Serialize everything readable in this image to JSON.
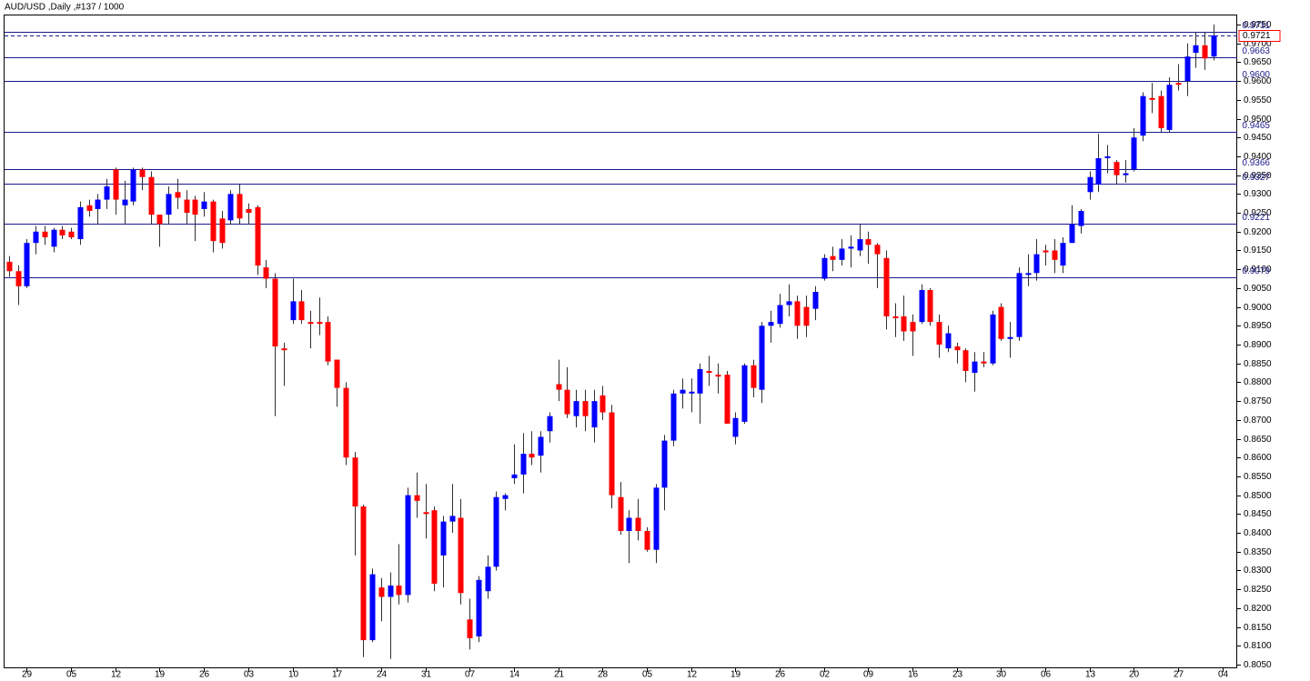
{
  "chart_data": {
    "type": "candlestick",
    "title": "AUD/USD ,Daily ,#137 / 1000",
    "categories": [
      null,
      null,
      "29",
      null,
      null,
      null,
      null,
      "05",
      null,
      null,
      null,
      null,
      "12",
      null,
      null,
      null,
      null,
      "19",
      null,
      null,
      null,
      null,
      "26",
      null,
      null,
      null,
      null,
      "03",
      null,
      null,
      null,
      null,
      "10",
      null,
      null,
      null,
      null,
      "17",
      null,
      null,
      null,
      null,
      "24",
      null,
      null,
      null,
      null,
      "31",
      null,
      null,
      null,
      null,
      "07",
      null,
      null,
      null,
      null,
      "14",
      null,
      null,
      null,
      null,
      "21",
      null,
      null,
      null,
      null,
      "28",
      null,
      null,
      null,
      null,
      "05",
      null,
      null,
      null,
      null,
      "12",
      null,
      null,
      null,
      null,
      "19",
      null,
      null,
      null,
      null,
      "26",
      null,
      null,
      null,
      null,
      "02",
      null,
      null,
      null,
      null,
      "09",
      null,
      null,
      null,
      null,
      "16",
      null,
      null,
      null,
      null,
      "23",
      null,
      null,
      null,
      null,
      "30",
      null,
      null,
      null,
      null,
      "06",
      null,
      null,
      null,
      null,
      "13",
      null,
      null,
      null,
      null,
      "20",
      null,
      null,
      null,
      null,
      "27",
      null,
      null,
      null,
      null,
      "04"
    ],
    "open": [
      0.912,
      0.9095,
      0.9055,
      0.917,
      0.92,
      0.916,
      0.9205,
      0.92,
      0.918,
      0.927,
      0.926,
      0.9285,
      0.9365,
      0.927,
      0.928,
      0.9365,
      0.9345,
      0.9245,
      0.9245,
      0.9305,
      0.9285,
      0.9285,
      0.926,
      0.928,
      0.9235,
      0.923,
      0.93,
      0.926,
      0.9265,
      0.9105,
      0.9075,
      0.889,
      0.8965,
      0.9015,
      0.896,
      0.896,
      0.896,
      0.886,
      0.8785,
      0.86,
      0.847,
      0.8115,
      0.8255,
      0.823,
      0.826,
      0.8235,
      0.85,
      0.8455,
      0.846,
      0.834,
      0.843,
      0.844,
      0.817,
      0.8125,
      0.8245,
      0.831,
      0.849,
      0.8545,
      0.8555,
      0.861,
      0.8605,
      0.867,
      0.8795,
      0.878,
      0.871,
      0.875,
      0.868,
      0.8765,
      0.872,
      0.8495,
      0.8405,
      0.844,
      0.8405,
      0.8355,
      0.852,
      0.8645,
      0.877,
      0.877,
      0.877,
      0.883,
      0.882,
      0.882,
      0.8655,
      0.8695,
      0.8845,
      0.878,
      0.895,
      0.8955,
      0.9005,
      0.9015,
      0.9,
      0.8995,
      0.9075,
      0.9135,
      0.9125,
      0.9155,
      0.915,
      0.918,
      0.9165,
      0.913,
      0.8975,
      0.8975,
      0.896,
      0.896,
      0.9045,
      0.896,
      0.889,
      0.8895,
      0.8885,
      0.8825,
      0.8855,
      0.885,
      0.9,
      0.8915,
      0.892,
      0.9085,
      0.909,
      0.915,
      0.915,
      0.911,
      0.917,
      0.9215,
      0.9305,
      0.9325,
      0.9395,
      0.9385,
      0.935,
      0.9365,
      0.9455,
      0.9555,
      0.956,
      0.947,
      0.9595,
      0.96,
      0.9675,
      0.9695,
      0.9665,
      null
    ],
    "high": [
      0.9135,
      0.911,
      0.918,
      0.9215,
      0.9215,
      0.921,
      0.9215,
      0.921,
      0.928,
      0.9285,
      0.93,
      0.934,
      0.937,
      0.9335,
      0.937,
      0.937,
      0.936,
      0.9245,
      0.932,
      0.934,
      0.931,
      0.9295,
      0.9305,
      0.9285,
      0.9255,
      0.931,
      0.9325,
      0.9275,
      0.927,
      0.9125,
      0.909,
      0.8905,
      0.9075,
      0.9045,
      0.899,
      0.9025,
      0.8975,
      0.886,
      0.88,
      0.8615,
      0.8475,
      0.8305,
      0.828,
      0.8295,
      0.837,
      0.852,
      0.856,
      0.853,
      0.847,
      0.8445,
      0.853,
      0.849,
      0.8225,
      0.8285,
      0.834,
      0.851,
      0.8505,
      0.8635,
      0.8665,
      0.867,
      0.867,
      0.872,
      0.886,
      0.884,
      0.878,
      0.878,
      0.878,
      0.879,
      0.874,
      0.8535,
      0.846,
      0.849,
      0.8415,
      0.853,
      0.866,
      0.878,
      0.881,
      0.881,
      0.885,
      0.887,
      0.885,
      0.883,
      0.872,
      0.885,
      0.886,
      0.896,
      0.899,
      0.9035,
      0.906,
      0.903,
      0.903,
      0.9055,
      0.914,
      0.916,
      0.918,
      0.919,
      0.922,
      0.92,
      0.917,
      0.915,
      0.901,
      0.903,
      0.898,
      0.906,
      0.905,
      0.898,
      0.895,
      0.8905,
      0.889,
      0.888,
      0.888,
      0.899,
      0.901,
      0.896,
      0.9105,
      0.914,
      0.918,
      0.9165,
      0.918,
      0.9185,
      0.927,
      0.926,
      0.936,
      0.946,
      0.943,
      0.939,
      0.939,
      0.9475,
      0.957,
      0.9595,
      0.9575,
      0.961,
      0.9645,
      0.97,
      0.973,
      0.973,
      0.975,
      null
    ],
    "low": [
      0.908,
      0.9005,
      0.905,
      0.914,
      0.9165,
      0.9145,
      0.918,
      0.918,
      0.9165,
      0.924,
      0.922,
      0.926,
      0.9245,
      0.922,
      0.927,
      0.931,
      0.922,
      0.916,
      0.922,
      0.926,
      0.922,
      0.9175,
      0.924,
      0.9145,
      0.9155,
      0.922,
      0.922,
      0.922,
      0.9085,
      0.905,
      0.871,
      0.879,
      0.8955,
      0.8955,
      0.889,
      0.8925,
      0.8845,
      0.8735,
      0.858,
      0.834,
      0.807,
      0.811,
      0.8165,
      0.8065,
      0.821,
      0.8215,
      0.844,
      0.8385,
      0.8245,
      0.8255,
      0.84,
      0.821,
      0.809,
      0.811,
      0.8225,
      0.83,
      0.846,
      0.853,
      0.8505,
      0.858,
      0.856,
      0.864,
      0.875,
      0.8705,
      0.868,
      0.867,
      0.864,
      0.87,
      0.8465,
      0.8395,
      0.832,
      0.838,
      0.835,
      0.832,
      0.846,
      0.863,
      0.873,
      0.872,
      0.869,
      0.879,
      0.877,
      0.869,
      0.8635,
      0.869,
      0.876,
      0.8745,
      0.8905,
      0.8945,
      0.8975,
      0.8915,
      0.892,
      0.8965,
      0.907,
      0.9095,
      0.911,
      0.9105,
      0.9135,
      0.9115,
      0.905,
      0.894,
      0.892,
      0.891,
      0.887,
      0.8955,
      0.895,
      0.8865,
      0.888,
      0.885,
      0.88,
      0.8775,
      0.884,
      0.8845,
      0.891,
      0.8865,
      0.891,
      0.9055,
      0.907,
      0.911,
      0.909,
      0.909,
      0.917,
      0.9195,
      0.9285,
      0.9305,
      0.9355,
      0.9325,
      0.933,
      0.936,
      0.944,
      0.9515,
      0.9465,
      0.9465,
      0.9575,
      0.956,
      0.9635,
      0.963,
      0.9655,
      null
    ],
    "close": [
      0.9095,
      0.9055,
      0.917,
      0.92,
      0.9185,
      0.9205,
      0.919,
      0.9185,
      0.9265,
      0.9255,
      0.9285,
      0.932,
      0.9285,
      0.9285,
      0.9365,
      0.9345,
      0.9245,
      0.922,
      0.93,
      0.929,
      0.925,
      0.9245,
      0.928,
      0.9175,
      0.917,
      0.93,
      0.9235,
      0.925,
      0.911,
      0.9075,
      0.8895,
      0.8885,
      0.9015,
      0.8965,
      0.8955,
      0.8955,
      0.8855,
      0.8785,
      0.86,
      0.847,
      0.8115,
      0.829,
      0.823,
      0.826,
      0.8235,
      0.85,
      0.8485,
      0.845,
      0.8265,
      0.843,
      0.8445,
      0.824,
      0.812,
      0.8275,
      0.831,
      0.8495,
      0.85,
      0.8555,
      0.861,
      0.86,
      0.8655,
      0.871,
      0.878,
      0.8715,
      0.875,
      0.871,
      0.875,
      0.872,
      0.85,
      0.8405,
      0.844,
      0.8405,
      0.8355,
      0.852,
      0.8645,
      0.877,
      0.878,
      0.8775,
      0.8835,
      0.8825,
      0.8815,
      0.869,
      0.8705,
      0.8845,
      0.8785,
      0.895,
      0.896,
      0.9005,
      0.9015,
      0.895,
      0.895,
      0.904,
      0.913,
      0.9125,
      0.9155,
      0.916,
      0.918,
      0.9165,
      0.914,
      0.8975,
      0.897,
      0.8935,
      0.8935,
      0.9045,
      0.896,
      0.89,
      0.893,
      0.8885,
      0.883,
      0.8855,
      0.885,
      0.898,
      0.8915,
      0.892,
      0.909,
      0.909,
      0.914,
      0.9145,
      0.9125,
      0.917,
      0.922,
      0.9255,
      0.9345,
      0.9395,
      0.94,
      0.935,
      0.9355,
      0.945,
      0.956,
      0.955,
      0.9475,
      0.959,
      0.959,
      0.9665,
      0.9695,
      0.966,
      0.9721,
      null
    ],
    "up_color": "#0000ff",
    "down_color": "#ff0000",
    "wick_color": "#303030",
    "levels": [
      0.9731,
      0.9663,
      {
        "value": 0.96,
        "label": "0.9600"
      },
      0.9465,
      0.9366,
      0.9327,
      0.9221,
      0.9079
    ],
    "level_color": "#1a1a8c",
    "current_price": 0.9721,
    "ylim": [
      0.805,
      0.975
    ],
    "yticks": [
      {
        "value": 0.975,
        "label": "0.9750"
      },
      {
        "value": 0.97,
        "label": "0.9700"
      },
      {
        "value": 0.965,
        "label": "0.9650"
      },
      {
        "value": 0.96,
        "label": "0.9600"
      },
      {
        "value": 0.955,
        "label": "0.9550"
      },
      {
        "value": 0.95,
        "label": "0.9500"
      },
      {
        "value": 0.945,
        "label": "0.9450"
      },
      {
        "value": 0.94,
        "label": "0.9400"
      },
      {
        "value": 0.935,
        "label": "0.9350"
      },
      {
        "value": 0.93,
        "label": "0.9300"
      },
      {
        "value": 0.925,
        "label": "0.9250"
      },
      {
        "value": 0.92,
        "label": "0.9200"
      },
      {
        "value": 0.915,
        "label": "0.9150"
      },
      {
        "value": 0.91,
        "label": "0.9100"
      },
      {
        "value": 0.905,
        "label": "0.9050"
      },
      {
        "value": 0.9,
        "label": "0.9000"
      },
      {
        "value": 0.895,
        "label": "0.8950"
      },
      {
        "value": 0.89,
        "label": "0.8900"
      },
      {
        "value": 0.885,
        "label": "0.8850"
      },
      {
        "value": 0.88,
        "label": "0.8800"
      },
      {
        "value": 0.875,
        "label": "0.8750"
      },
      {
        "value": 0.87,
        "label": "0.8700"
      },
      {
        "value": 0.865,
        "label": "0.8650"
      },
      {
        "value": 0.86,
        "label": "0.8600"
      },
      {
        "value": 0.855,
        "label": "0.8550"
      },
      {
        "value": 0.85,
        "label": "0.8500"
      },
      {
        "value": 0.845,
        "label": "0.8450"
      },
      {
        "value": 0.84,
        "label": "0.8400"
      },
      {
        "value": 0.835,
        "label": "0.8350"
      },
      {
        "value": 0.83,
        "label": "0.8300"
      },
      {
        "value": 0.825,
        "label": "0.8250"
      },
      {
        "value": 0.82,
        "label": "0.8200"
      },
      {
        "value": 0.815,
        "label": "0.8150"
      },
      {
        "value": 0.81,
        "label": "0.8100"
      },
      {
        "value": 0.805,
        "label": "0.8050"
      }
    ]
  }
}
